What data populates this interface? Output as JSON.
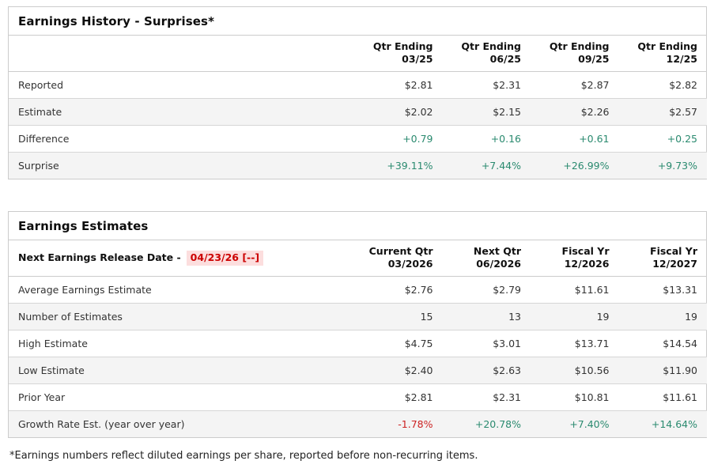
{
  "colors": {
    "positive_value": "#2a8a6f",
    "negative_value": "#cc2222",
    "release_date_text": "#cc0000",
    "release_date_bg": "#fcdede",
    "alt_row_bg": "#f4f4f4",
    "border": "#cccccc",
    "text": "#333333"
  },
  "history": {
    "title": "Earnings History - Surprises*",
    "columns": [
      {
        "line1": "Qtr Ending",
        "line2": "03/25"
      },
      {
        "line1": "Qtr Ending",
        "line2": "06/25"
      },
      {
        "line1": "Qtr Ending",
        "line2": "09/25"
      },
      {
        "line1": "Qtr Ending",
        "line2": "12/25"
      }
    ],
    "rows": [
      {
        "label": "Reported",
        "values": [
          "$2.81",
          "$2.31",
          "$2.87",
          "$2.82"
        ]
      },
      {
        "label": "Estimate",
        "values": [
          "$2.02",
          "$2.15",
          "$2.26",
          "$2.57"
        ]
      },
      {
        "label": "Difference",
        "values": [
          "+0.79",
          "+0.16",
          "+0.61",
          "+0.25"
        ]
      },
      {
        "label": "Surprise",
        "values": [
          "+39.11%",
          "+7.44%",
          "+26.99%",
          "+9.73%"
        ]
      }
    ]
  },
  "estimates": {
    "title": "Earnings Estimates",
    "release_label": "Next Earnings Release Date -",
    "release_date": "04/23/26 [--]",
    "columns": [
      {
        "line1": "Current Qtr",
        "line2": "03/2026"
      },
      {
        "line1": "Next Qtr",
        "line2": "06/2026"
      },
      {
        "line1": "Fiscal Yr",
        "line2": "12/2026"
      },
      {
        "line1": "Fiscal Yr",
        "line2": "12/2027"
      }
    ],
    "rows": [
      {
        "label": "Average Earnings Estimate",
        "values": [
          "$2.76",
          "$2.79",
          "$11.61",
          "$13.31"
        ]
      },
      {
        "label": "Number of Estimates",
        "values": [
          "15",
          "13",
          "19",
          "19"
        ]
      },
      {
        "label": "High Estimate",
        "values": [
          "$4.75",
          "$3.01",
          "$13.71",
          "$14.54"
        ]
      },
      {
        "label": "Low Estimate",
        "values": [
          "$2.40",
          "$2.63",
          "$10.56",
          "$11.90"
        ]
      },
      {
        "label": "Prior Year",
        "values": [
          "$2.81",
          "$2.31",
          "$10.81",
          "$11.61"
        ]
      },
      {
        "label": "Growth Rate Est. (year over year)",
        "values": [
          "-1.78%",
          "+20.78%",
          "+7.40%",
          "+14.64%"
        ]
      }
    ]
  },
  "footnote": "*Earnings numbers reflect diluted earnings per share, reported before non-recurring items."
}
